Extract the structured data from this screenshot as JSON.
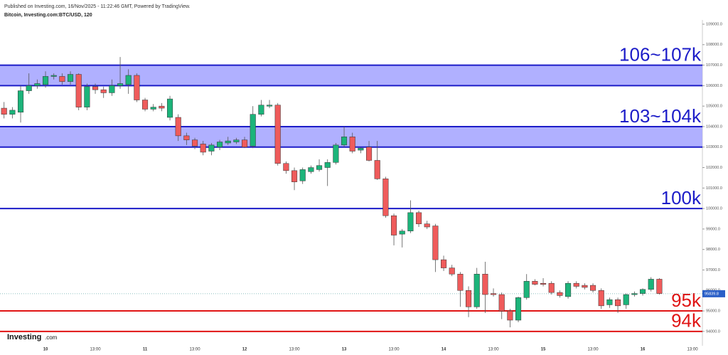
{
  "header": {
    "published": "Published on Investing.com, 16/Nov/2025 - 11:22:46 GMT, Powered by TradingView.",
    "symbol": "Bitcoin, Investing.com:BTC/USD, 120"
  },
  "logo": {
    "name": "Investing",
    "suffix": ".com"
  },
  "chart_data": {
    "type": "candlestick",
    "categories": [
      null,
      null,
      null,
      null,
      null,
      "10",
      null,
      null,
      null,
      null,
      null,
      "13:00",
      null,
      null,
      null,
      null,
      null,
      "11",
      null,
      null,
      null,
      null,
      null,
      "13:00",
      null,
      null,
      null,
      null,
      null,
      "12",
      null,
      null,
      null,
      null,
      null,
      "13:00",
      null,
      null,
      null,
      null,
      null,
      "13",
      null,
      null,
      null,
      null,
      null,
      "13:00",
      null,
      null,
      null,
      null,
      null,
      "14",
      null,
      null,
      null,
      null,
      null,
      "13:00",
      null,
      null,
      null,
      null,
      null,
      "15",
      null,
      null,
      null,
      null,
      null,
      "13:00",
      null,
      null,
      null,
      null,
      null,
      "16",
      null,
      null,
      null,
      null,
      null,
      "13:00"
    ],
    "open": [
      104900,
      104600,
      104700,
      105750,
      106000,
      106050,
      106450,
      106450,
      106200,
      106550,
      104950,
      105950,
      105800,
      105650,
      106000,
      106050,
      106500,
      105300,
      104850,
      105000,
      104450,
      104450,
      103550,
      103350,
      103150,
      102800,
      103000,
      103200,
      103250,
      103350,
      103050,
      104600,
      105000,
      105050,
      102200,
      101850,
      101350,
      101800,
      101900,
      102000,
      102250,
      103100,
      103500,
      102850,
      103000,
      102350,
      101450,
      99650,
      98750,
      98900,
      99800,
      99250,
      99150,
      97500,
      97100,
      96800,
      96000,
      95200,
      96800,
      95850,
      95800,
      95000,
      94550,
      95650,
      96450,
      96350,
      96350,
      95900,
      95700,
      96350,
      96250,
      96250,
      96000,
      95300,
      95550,
      95300,
      95800,
      95850,
      96050,
      96550,
      null,
      null,
      null,
      null
    ],
    "high": [
      105200,
      104950,
      106000,
      106600,
      106300,
      106700,
      106600,
      106600,
      106700,
      106600,
      106100,
      106100,
      105950,
      106300,
      107400,
      106800,
      106600,
      105400,
      105100,
      105150,
      105500,
      104600,
      103700,
      103450,
      103300,
      103200,
      103350,
      103500,
      103450,
      103500,
      105000,
      105300,
      105300,
      105150,
      102300,
      102000,
      102000,
      102100,
      102400,
      102400,
      103200,
      104000,
      103700,
      103000,
      103300,
      103300,
      101550,
      99750,
      99000,
      100400,
      99900,
      99400,
      99250,
      97700,
      97250,
      96900,
      96200,
      97100,
      97400,
      96100,
      95900,
      95100,
      95700,
      96800,
      96550,
      96600,
      96450,
      96000,
      96450,
      96450,
      96350,
      96350,
      96100,
      95650,
      95650,
      95850,
      95950,
      96100,
      96650,
      96600,
      null,
      null,
      null,
      null
    ],
    "low": [
      104400,
      104400,
      104200,
      105600,
      105850,
      105900,
      106300,
      106050,
      106050,
      104800,
      104800,
      105600,
      105400,
      105500,
      105850,
      105600,
      105200,
      104750,
      104750,
      104750,
      104300,
      103300,
      103100,
      102900,
      102600,
      102600,
      102850,
      103100,
      103150,
      102950,
      102950,
      104500,
      104900,
      102100,
      101700,
      100900,
      101200,
      101700,
      101800,
      101100,
      102150,
      103000,
      102700,
      102700,
      102300,
      101400,
      99550,
      98200,
      98100,
      98800,
      99100,
      99000,
      96900,
      96950,
      96700,
      95200,
      94700,
      95100,
      94900,
      95700,
      94600,
      94200,
      94450,
      95550,
      96250,
      96200,
      95800,
      95650,
      95600,
      96100,
      96050,
      95900,
      95100,
      95150,
      94900,
      95100,
      95700,
      95750,
      95950,
      95800,
      null,
      null,
      null,
      null
    ],
    "close": [
      104600,
      104800,
      105750,
      106000,
      106100,
      106450,
      106500,
      106200,
      106550,
      104950,
      105950,
      105800,
      105650,
      106000,
      106100,
      106500,
      105300,
      104850,
      104950,
      104900,
      105350,
      103550,
      103350,
      103050,
      102750,
      103100,
      103250,
      103300,
      103350,
      103000,
      104600,
      105050,
      105050,
      102200,
      101850,
      101300,
      101900,
      102000,
      102100,
      102250,
      103100,
      103500,
      102800,
      102950,
      102350,
      101450,
      99650,
      98700,
      98900,
      99800,
      99250,
      99100,
      97500,
      97100,
      96800,
      96000,
      95200,
      96800,
      95800,
      95800,
      95000,
      94550,
      95650,
      96450,
      96300,
      96300,
      95900,
      95750,
      96350,
      96200,
      96150,
      96000,
      95250,
      95550,
      95250,
      95800,
      95850,
      96050,
      96550,
      95850,
      null,
      null,
      null,
      null
    ],
    "up_color": "#1cb47a",
    "down_color": "#ef5b5b",
    "ylim": [
      93300,
      109000
    ],
    "yticks": [
      {
        "value": 94000,
        "label": "94000.0"
      },
      {
        "value": 95000,
        "label": "95000.0"
      },
      {
        "value": 96000,
        "label": "96000.0"
      },
      {
        "value": 97000,
        "label": "97000.0"
      },
      {
        "value": 98000,
        "label": "98000.0"
      },
      {
        "value": 99000,
        "label": "99000.0"
      },
      {
        "value": 100000,
        "label": "100000.0"
      },
      {
        "value": 101000,
        "label": "101000.0"
      },
      {
        "value": 102000,
        "label": "102000.0"
      },
      {
        "value": 103000,
        "label": "103000.0"
      },
      {
        "value": 104000,
        "label": "104000.0"
      },
      {
        "value": 105000,
        "label": "105000.0"
      },
      {
        "value": 106000,
        "label": "106000.0"
      },
      {
        "value": 107000,
        "label": "107000.0"
      },
      {
        "value": 108000,
        "label": "108000.0"
      },
      {
        "value": 109000,
        "label": "109000.0"
      }
    ],
    "last_price": 95839.8,
    "bands": [
      {
        "low": 106000,
        "high": 107000,
        "label": "106~107k",
        "color": "#1c1cc8",
        "fill": "#b0b0ff"
      },
      {
        "low": 103000,
        "high": 104000,
        "label": "103~104k",
        "color": "#1c1cc8",
        "fill": "#b0b0ff"
      }
    ],
    "levels": [
      {
        "value": 100000,
        "label": "100k",
        "color": "#1c1cc8"
      },
      {
        "value": 95000,
        "label": "95k",
        "color": "#e01414"
      },
      {
        "value": 94000,
        "label": "94k",
        "color": "#e01414"
      }
    ]
  }
}
